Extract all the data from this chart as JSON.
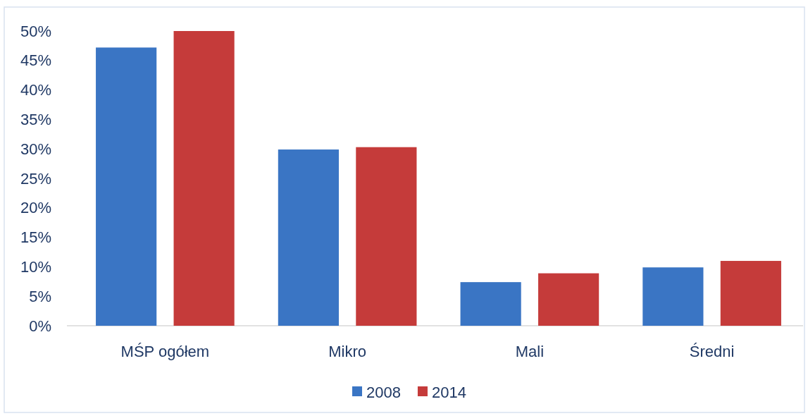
{
  "chart_data": {
    "type": "bar",
    "categories": [
      "MŚP ogółem",
      "Mikro",
      "Mali",
      "Średni"
    ],
    "series": [
      {
        "name": "2008",
        "color": "#3a75c4",
        "values": [
          47.2,
          29.9,
          7.4,
          9.9
        ]
      },
      {
        "name": "2014",
        "color": "#c53b3a",
        "values": [
          50,
          30.3,
          8.9,
          11.0
        ]
      }
    ],
    "ylim": [
      0,
      50
    ],
    "yticks": [
      {
        "value": 0,
        "label": "0%"
      },
      {
        "value": 5,
        "label": "5%"
      },
      {
        "value": 10,
        "label": "10%"
      },
      {
        "value": 15,
        "label": "15%"
      },
      {
        "value": 20,
        "label": "20%"
      },
      {
        "value": 25,
        "label": "25%"
      },
      {
        "value": 30,
        "label": "30%"
      },
      {
        "value": 35,
        "label": "35%"
      },
      {
        "value": 40,
        "label": "40%"
      },
      {
        "value": 45,
        "label": "45%"
      },
      {
        "value": 50,
        "label": "50%"
      }
    ],
    "grid": false,
    "legend": "bottom"
  }
}
